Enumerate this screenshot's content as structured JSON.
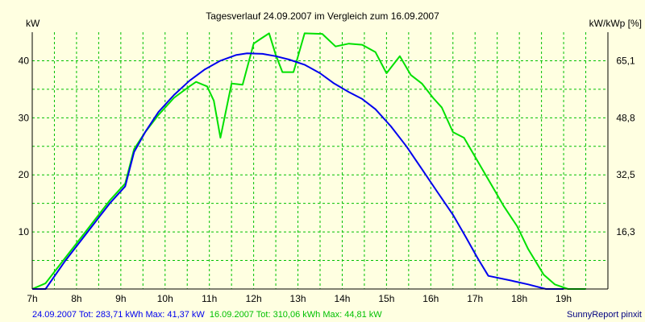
{
  "chart_data": {
    "type": "line",
    "title": "Tagesverlauf 24.09.2007 im Vergleich zum 16.09.2007",
    "ylabel_left": "kW",
    "ylabel_right": "kW/kWp [%]",
    "x_range": [
      7,
      20
    ],
    "ylim": [
      0,
      45
    ],
    "x_ticks": [
      {
        "value": 7,
        "label": "7h"
      },
      {
        "value": 8,
        "label": "8h"
      },
      {
        "value": 9,
        "label": "9h"
      },
      {
        "value": 10,
        "label": "10h"
      },
      {
        "value": 11,
        "label": "11h"
      },
      {
        "value": 12,
        "label": "12h"
      },
      {
        "value": 13,
        "label": "13h"
      },
      {
        "value": 14,
        "label": "14h"
      },
      {
        "value": 15,
        "label": "15h"
      },
      {
        "value": 16,
        "label": "16h"
      },
      {
        "value": 17,
        "label": "17h"
      },
      {
        "value": 18,
        "label": "18h"
      },
      {
        "value": 19,
        "label": "19h"
      }
    ],
    "y_left_ticks": [
      {
        "value": 10,
        "label": "10"
      },
      {
        "value": 20,
        "label": "20"
      },
      {
        "value": 30,
        "label": "30"
      },
      {
        "value": 40,
        "label": "40"
      }
    ],
    "y_right_ticks": [
      {
        "value": 10,
        "label": "16,3"
      },
      {
        "value": 20,
        "label": "32,5"
      },
      {
        "value": 30,
        "label": "48,8"
      },
      {
        "value": 40,
        "label": "65,1"
      }
    ],
    "grid": true,
    "series": [
      {
        "color": "#0000ee",
        "points": [
          [
            7.0,
            0
          ],
          [
            7.3,
            0
          ],
          [
            7.75,
            5
          ],
          [
            8.25,
            10
          ],
          [
            8.75,
            15
          ],
          [
            9.1,
            18
          ],
          [
            9.3,
            24
          ],
          [
            9.55,
            27.5
          ],
          [
            9.85,
            31
          ],
          [
            10.2,
            34
          ],
          [
            10.55,
            36.5
          ],
          [
            10.9,
            38.5
          ],
          [
            11.25,
            40
          ],
          [
            11.6,
            41
          ],
          [
            11.85,
            41.3
          ],
          [
            12.2,
            41.2
          ],
          [
            12.5,
            40.8
          ],
          [
            12.8,
            40.2
          ],
          [
            13.15,
            39.3
          ],
          [
            13.5,
            37.8
          ],
          [
            13.8,
            36.1
          ],
          [
            14.15,
            34.5
          ],
          [
            14.45,
            33.3
          ],
          [
            14.75,
            31.5
          ],
          [
            15.1,
            28.5
          ],
          [
            15.45,
            25
          ],
          [
            15.8,
            21
          ],
          [
            16.15,
            17
          ],
          [
            16.5,
            13
          ],
          [
            16.8,
            9
          ],
          [
            17.05,
            5.5
          ],
          [
            17.3,
            2.3
          ],
          [
            17.8,
            1.5
          ],
          [
            18.2,
            0.8
          ],
          [
            18.6,
            0
          ],
          [
            19.0,
            0
          ]
        ]
      },
      {
        "color": "#00e000",
        "points": [
          [
            7.0,
            0
          ],
          [
            7.3,
            1
          ],
          [
            7.75,
            5.5
          ],
          [
            8.25,
            10.5
          ],
          [
            8.75,
            15.5
          ],
          [
            9.1,
            18.5
          ],
          [
            9.3,
            24.5
          ],
          [
            9.55,
            27.5
          ],
          [
            9.85,
            30.5
          ],
          [
            10.2,
            33.5
          ],
          [
            10.55,
            35.5
          ],
          [
            10.7,
            36.3
          ],
          [
            10.95,
            35.5
          ],
          [
            11.1,
            33
          ],
          [
            11.25,
            26.5
          ],
          [
            11.5,
            36
          ],
          [
            11.75,
            35.8
          ],
          [
            12.0,
            43
          ],
          [
            12.15,
            43.8
          ],
          [
            12.35,
            44.8
          ],
          [
            12.5,
            41
          ],
          [
            12.65,
            38
          ],
          [
            12.9,
            38
          ],
          [
            13.15,
            44.8
          ],
          [
            13.55,
            44.7
          ],
          [
            13.85,
            42.5
          ],
          [
            14.15,
            43
          ],
          [
            14.45,
            42.8
          ],
          [
            14.75,
            41.5
          ],
          [
            15.0,
            37.8
          ],
          [
            15.3,
            40.8
          ],
          [
            15.55,
            37.5
          ],
          [
            15.8,
            36
          ],
          [
            16.05,
            33.5
          ],
          [
            16.25,
            31.8
          ],
          [
            16.5,
            27.5
          ],
          [
            16.75,
            26.5
          ],
          [
            17.05,
            22.5
          ],
          [
            17.35,
            18.5
          ],
          [
            17.65,
            14.5
          ],
          [
            17.95,
            11
          ],
          [
            18.2,
            7
          ],
          [
            18.55,
            2.5
          ],
          [
            18.8,
            0.8
          ],
          [
            19.1,
            0
          ],
          [
            19.5,
            0
          ]
        ]
      }
    ]
  },
  "footer": {
    "s1_label": "24.09.2007 Tot: 283,71 kWh Max: 41,37 kW",
    "s2_label": "16.09.2007 Tot: 310,06 kWh Max: 44,81 kW",
    "credit": "SunnyReport pinxit"
  },
  "colors": {
    "background": "#ffffe1",
    "grid": "#00c000",
    "axis": "#000000",
    "footer_s1": "#0000ee",
    "footer_s2": "#00c000",
    "credit": "#000080"
  }
}
